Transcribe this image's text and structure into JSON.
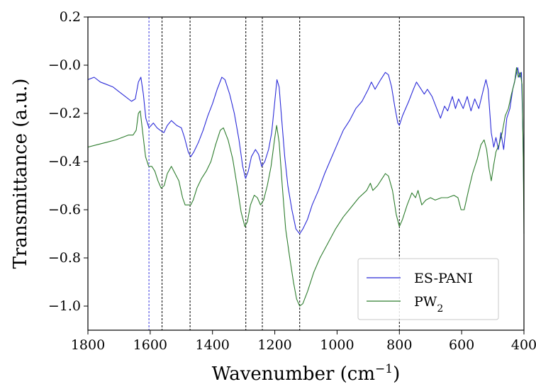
{
  "chart_data": {
    "type": "line",
    "title": "",
    "xlabel": "Wavenumber (cm",
    "xlabel_sup": "−1",
    "xlabel_close": ")",
    "ylabel": "Transmittance (a.u.)",
    "xlim": [
      1800,
      400
    ],
    "ylim": [
      -1.1,
      0.2
    ],
    "x_reversed": true,
    "xticks": [
      1800,
      1600,
      1400,
      1200,
      1000,
      800,
      600,
      400
    ],
    "xtick_labels": [
      "1800",
      "1600",
      "1400",
      "1200",
      "1000",
      "800",
      "600",
      "400"
    ],
    "yticks": [
      0.2,
      0.0,
      -0.2,
      -0.4,
      -0.6,
      -0.8,
      -1.0
    ],
    "ytick_labels": [
      "0.2",
      "−0.0",
      "−0.2",
      "−0.4",
      "−0.6",
      "−0.8",
      "−1.0"
    ],
    "grid": false,
    "legend_position": "lower-right",
    "reference_lines": [
      {
        "x": 1604,
        "color": "#3a3ae0"
      },
      {
        "x": 1562,
        "color": "#000000"
      },
      {
        "x": 1472,
        "color": "#000000"
      },
      {
        "x": 1293,
        "color": "#000000"
      },
      {
        "x": 1240,
        "color": "#000000"
      },
      {
        "x": 1120,
        "color": "#000000"
      },
      {
        "x": 800,
        "color": "#000000"
      }
    ],
    "series": [
      {
        "name": "ES-PANI",
        "color": "#2b2bd8",
        "points": [
          [
            1800,
            -0.06
          ],
          [
            1780,
            -0.05
          ],
          [
            1760,
            -0.07
          ],
          [
            1740,
            -0.08
          ],
          [
            1720,
            -0.09
          ],
          [
            1700,
            -0.11
          ],
          [
            1680,
            -0.13
          ],
          [
            1660,
            -0.15
          ],
          [
            1648,
            -0.14
          ],
          [
            1638,
            -0.07
          ],
          [
            1630,
            -0.05
          ],
          [
            1622,
            -0.12
          ],
          [
            1614,
            -0.22
          ],
          [
            1604,
            -0.26
          ],
          [
            1590,
            -0.24
          ],
          [
            1578,
            -0.26
          ],
          [
            1568,
            -0.27
          ],
          [
            1556,
            -0.28
          ],
          [
            1545,
            -0.25
          ],
          [
            1532,
            -0.23
          ],
          [
            1515,
            -0.25
          ],
          [
            1500,
            -0.26
          ],
          [
            1490,
            -0.3
          ],
          [
            1478,
            -0.36
          ],
          [
            1470,
            -0.38
          ],
          [
            1460,
            -0.36
          ],
          [
            1445,
            -0.32
          ],
          [
            1430,
            -0.27
          ],
          [
            1415,
            -0.21
          ],
          [
            1400,
            -0.16
          ],
          [
            1385,
            -0.1
          ],
          [
            1370,
            -0.05
          ],
          [
            1360,
            -0.06
          ],
          [
            1345,
            -0.12
          ],
          [
            1330,
            -0.2
          ],
          [
            1315,
            -0.31
          ],
          [
            1303,
            -0.42
          ],
          [
            1294,
            -0.47
          ],
          [
            1285,
            -0.44
          ],
          [
            1275,
            -0.38
          ],
          [
            1262,
            -0.35
          ],
          [
            1252,
            -0.37
          ],
          [
            1242,
            -0.42
          ],
          [
            1232,
            -0.4
          ],
          [
            1220,
            -0.35
          ],
          [
            1210,
            -0.28
          ],
          [
            1200,
            -0.15
          ],
          [
            1193,
            -0.06
          ],
          [
            1186,
            -0.09
          ],
          [
            1178,
            -0.22
          ],
          [
            1168,
            -0.38
          ],
          [
            1158,
            -0.5
          ],
          [
            1145,
            -0.6
          ],
          [
            1132,
            -0.68
          ],
          [
            1120,
            -0.7
          ],
          [
            1110,
            -0.68
          ],
          [
            1095,
            -0.64
          ],
          [
            1080,
            -0.58
          ],
          [
            1060,
            -0.52
          ],
          [
            1040,
            -0.45
          ],
          [
            1020,
            -0.39
          ],
          [
            1000,
            -0.33
          ],
          [
            980,
            -0.27
          ],
          [
            960,
            -0.23
          ],
          [
            940,
            -0.18
          ],
          [
            920,
            -0.15
          ],
          [
            900,
            -0.1
          ],
          [
            890,
            -0.07
          ],
          [
            878,
            -0.1
          ],
          [
            860,
            -0.06
          ],
          [
            845,
            -0.03
          ],
          [
            835,
            -0.04
          ],
          [
            825,
            -0.09
          ],
          [
            815,
            -0.17
          ],
          [
            805,
            -0.24
          ],
          [
            800,
            -0.25
          ],
          [
            790,
            -0.21
          ],
          [
            770,
            -0.15
          ],
          [
            755,
            -0.1
          ],
          [
            745,
            -0.07
          ],
          [
            735,
            -0.09
          ],
          [
            720,
            -0.12
          ],
          [
            710,
            -0.1
          ],
          [
            695,
            -0.13
          ],
          [
            680,
            -0.18
          ],
          [
            668,
            -0.22
          ],
          [
            655,
            -0.17
          ],
          [
            645,
            -0.19
          ],
          [
            630,
            -0.13
          ],
          [
            620,
            -0.18
          ],
          [
            610,
            -0.14
          ],
          [
            595,
            -0.18
          ],
          [
            582,
            -0.13
          ],
          [
            570,
            -0.19
          ],
          [
            558,
            -0.14
          ],
          [
            545,
            -0.18
          ],
          [
            530,
            -0.1
          ],
          [
            522,
            -0.06
          ],
          [
            515,
            -0.1
          ],
          [
            505,
            -0.28
          ],
          [
            497,
            -0.34
          ],
          [
            490,
            -0.3
          ],
          [
            482,
            -0.35
          ],
          [
            474,
            -0.28
          ],
          [
            465,
            -0.35
          ],
          [
            455,
            -0.22
          ],
          [
            445,
            -0.18
          ],
          [
            436,
            -0.1
          ],
          [
            425,
            -0.04
          ],
          [
            420,
            -0.01
          ],
          [
            414,
            -0.05
          ],
          [
            408,
            -0.03
          ],
          [
            403,
            -0.3
          ],
          [
            400,
            -0.6
          ]
        ]
      },
      {
        "name": "PW",
        "name_sub": "2",
        "color": "#2e7d2e",
        "points": [
          [
            1800,
            -0.34
          ],
          [
            1770,
            -0.33
          ],
          [
            1740,
            -0.32
          ],
          [
            1710,
            -0.31
          ],
          [
            1690,
            -0.3
          ],
          [
            1670,
            -0.29
          ],
          [
            1655,
            -0.29
          ],
          [
            1645,
            -0.27
          ],
          [
            1638,
            -0.2
          ],
          [
            1632,
            -0.19
          ],
          [
            1625,
            -0.27
          ],
          [
            1615,
            -0.38
          ],
          [
            1605,
            -0.42
          ],
          [
            1595,
            -0.42
          ],
          [
            1585,
            -0.44
          ],
          [
            1575,
            -0.48
          ],
          [
            1565,
            -0.51
          ],
          [
            1555,
            -0.5
          ],
          [
            1545,
            -0.45
          ],
          [
            1532,
            -0.42
          ],
          [
            1520,
            -0.45
          ],
          [
            1508,
            -0.48
          ],
          [
            1496,
            -0.55
          ],
          [
            1488,
            -0.58
          ],
          [
            1478,
            -0.58
          ],
          [
            1470,
            -0.58
          ],
          [
            1462,
            -0.56
          ],
          [
            1450,
            -0.51
          ],
          [
            1435,
            -0.47
          ],
          [
            1420,
            -0.44
          ],
          [
            1405,
            -0.4
          ],
          [
            1390,
            -0.33
          ],
          [
            1375,
            -0.27
          ],
          [
            1365,
            -0.26
          ],
          [
            1350,
            -0.31
          ],
          [
            1335,
            -0.39
          ],
          [
            1320,
            -0.51
          ],
          [
            1308,
            -0.61
          ],
          [
            1296,
            -0.67
          ],
          [
            1288,
            -0.65
          ],
          [
            1278,
            -0.58
          ],
          [
            1266,
            -0.54
          ],
          [
            1256,
            -0.55
          ],
          [
            1246,
            -0.58
          ],
          [
            1236,
            -0.56
          ],
          [
            1224,
            -0.5
          ],
          [
            1212,
            -0.42
          ],
          [
            1200,
            -0.3
          ],
          [
            1194,
            -0.25
          ],
          [
            1186,
            -0.32
          ],
          [
            1176,
            -0.5
          ],
          [
            1165,
            -0.68
          ],
          [
            1152,
            -0.8
          ],
          [
            1140,
            -0.9
          ],
          [
            1130,
            -0.97
          ],
          [
            1120,
            -1.0
          ],
          [
            1110,
            -0.99
          ],
          [
            1095,
            -0.94
          ],
          [
            1075,
            -0.86
          ],
          [
            1055,
            -0.8
          ],
          [
            1030,
            -0.74
          ],
          [
            1005,
            -0.68
          ],
          [
            980,
            -0.63
          ],
          [
            955,
            -0.59
          ],
          [
            930,
            -0.55
          ],
          [
            905,
            -0.52
          ],
          [
            893,
            -0.49
          ],
          [
            885,
            -0.52
          ],
          [
            870,
            -0.5
          ],
          [
            855,
            -0.47
          ],
          [
            845,
            -0.45
          ],
          [
            835,
            -0.46
          ],
          [
            822,
            -0.52
          ],
          [
            810,
            -0.62
          ],
          [
            800,
            -0.67
          ],
          [
            790,
            -0.64
          ],
          [
            775,
            -0.58
          ],
          [
            760,
            -0.53
          ],
          [
            748,
            -0.55
          ],
          [
            740,
            -0.52
          ],
          [
            728,
            -0.58
          ],
          [
            715,
            -0.56
          ],
          [
            700,
            -0.55
          ],
          [
            685,
            -0.56
          ],
          [
            665,
            -0.55
          ],
          [
            645,
            -0.55
          ],
          [
            625,
            -0.54
          ],
          [
            612,
            -0.55
          ],
          [
            602,
            -0.6
          ],
          [
            592,
            -0.6
          ],
          [
            578,
            -0.52
          ],
          [
            565,
            -0.45
          ],
          [
            550,
            -0.39
          ],
          [
            538,
            -0.33
          ],
          [
            528,
            -0.31
          ],
          [
            520,
            -0.35
          ],
          [
            512,
            -0.43
          ],
          [
            505,
            -0.48
          ],
          [
            498,
            -0.42
          ],
          [
            490,
            -0.36
          ],
          [
            480,
            -0.33
          ],
          [
            470,
            -0.28
          ],
          [
            460,
            -0.21
          ],
          [
            450,
            -0.18
          ],
          [
            440,
            -0.12
          ],
          [
            430,
            -0.07
          ],
          [
            424,
            -0.01
          ],
          [
            418,
            -0.05
          ],
          [
            412,
            -0.03
          ],
          [
            406,
            -0.08
          ],
          [
            402,
            -0.4
          ],
          [
            400,
            -0.7
          ]
        ]
      }
    ]
  }
}
